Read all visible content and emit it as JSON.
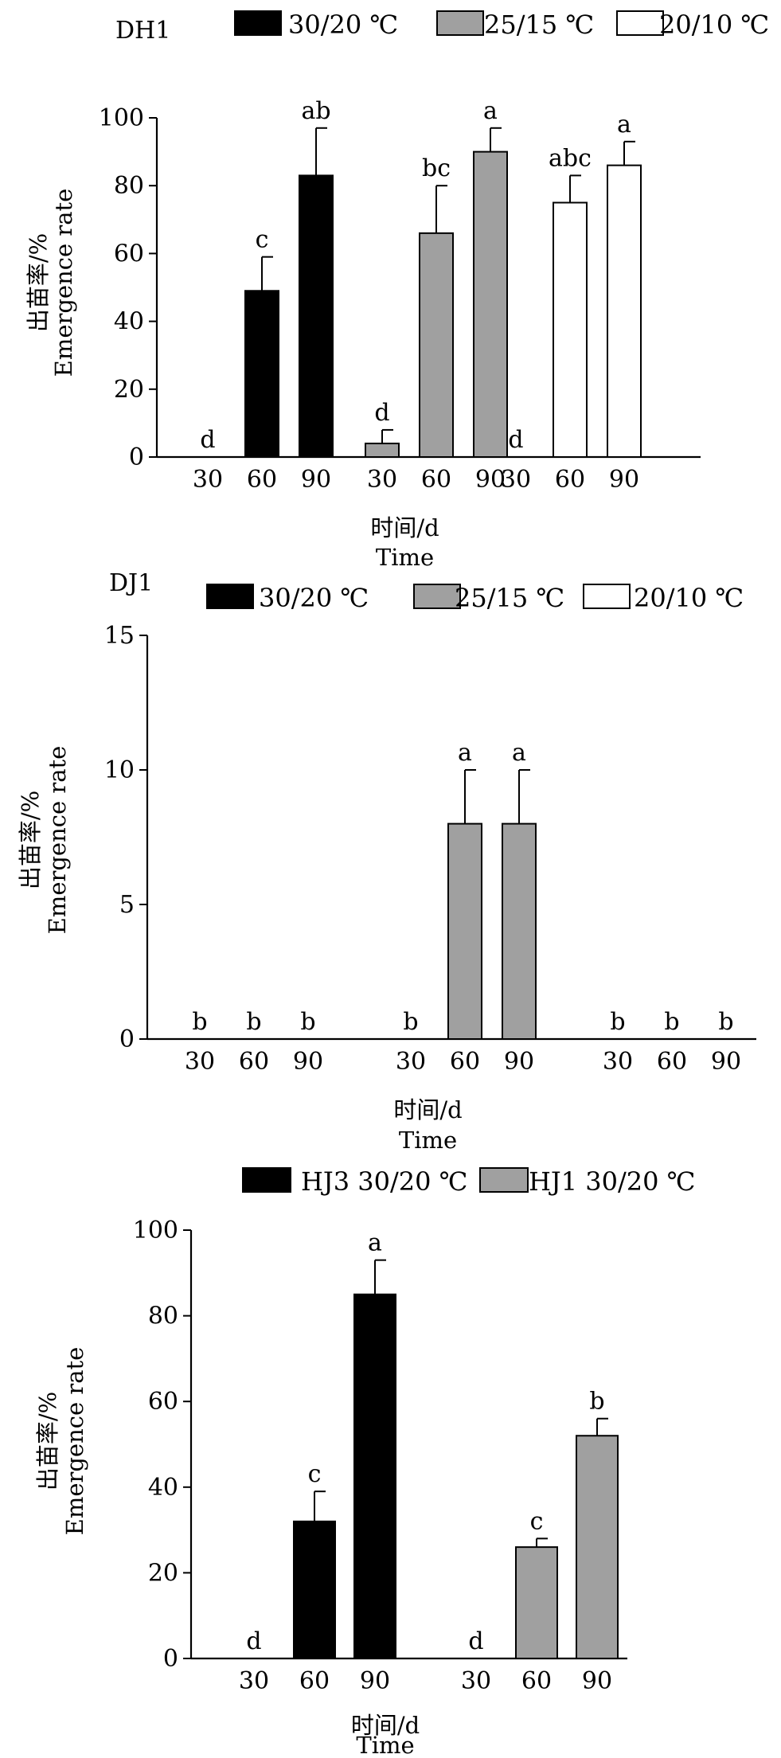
{
  "chart_data": [
    {
      "type": "bar",
      "panel_label": "DH1",
      "xlabel": "时间/d",
      "xlabel_en": "Time",
      "ylabel": "出苗率/%",
      "ylabel_en": "Emergence rate",
      "ylim": [
        0,
        100
      ],
      "yticks": [
        "0",
        "20",
        "40",
        "60",
        "80",
        "100"
      ],
      "grid": false,
      "legend_position": "top",
      "groups": [
        {
          "name": "30/20 ℃",
          "color": "#000000",
          "bars": [
            {
              "x": "30",
              "value": 0,
              "error": 0,
              "sig": "d"
            },
            {
              "x": "60",
              "value": 49,
              "error": 10,
              "sig": "c"
            },
            {
              "x": "90",
              "value": 83,
              "error": 14,
              "sig": "ab"
            }
          ]
        },
        {
          "name": "25/15 ℃",
          "color": "#a0a0a0",
          "bars": [
            {
              "x": "30",
              "value": 4,
              "error": 4,
              "sig": "d"
            },
            {
              "x": "60",
              "value": 66,
              "error": 14,
              "sig": "bc"
            },
            {
              "x": "90",
              "value": 90,
              "error": 7,
              "sig": "a"
            }
          ]
        },
        {
          "name": "20/10 ℃",
          "color": "#ffffff",
          "bars": [
            {
              "x": "30",
              "value": 0,
              "error": 0,
              "sig": "d"
            },
            {
              "x": "60",
              "value": 75,
              "error": 8,
              "sig": "abc"
            },
            {
              "x": "90",
              "value": 86,
              "error": 7,
              "sig": "a"
            }
          ]
        }
      ]
    },
    {
      "type": "bar",
      "panel_label": "DJ1",
      "xlabel": "时间/d",
      "xlabel_en": "Time",
      "ylabel": "出苗率/%",
      "ylabel_en": "Emergence rate",
      "ylim": [
        0,
        15
      ],
      "yticks": [
        "0",
        "5",
        "10",
        "15"
      ],
      "grid": false,
      "legend_position": "top",
      "groups": [
        {
          "name": "30/20 ℃",
          "color": "#000000",
          "bars": [
            {
              "x": "30",
              "value": 0,
              "error": 0,
              "sig": "b"
            },
            {
              "x": "60",
              "value": 0,
              "error": 0,
              "sig": "b"
            },
            {
              "x": "90",
              "value": 0,
              "error": 0,
              "sig": "b"
            }
          ]
        },
        {
          "name": "25/15 ℃",
          "color": "#a0a0a0",
          "bars": [
            {
              "x": "30",
              "value": 0,
              "error": 0,
              "sig": "b"
            },
            {
              "x": "60",
              "value": 8,
              "error": 2,
              "sig": "a"
            },
            {
              "x": "90",
              "value": 8,
              "error": 2,
              "sig": "a"
            }
          ]
        },
        {
          "name": "20/10 ℃",
          "color": "#ffffff",
          "bars": [
            {
              "x": "30",
              "value": 0,
              "error": 0,
              "sig": "b"
            },
            {
              "x": "60",
              "value": 0,
              "error": 0,
              "sig": "b"
            },
            {
              "x": "90",
              "value": 0,
              "error": 0,
              "sig": "b"
            }
          ]
        }
      ]
    },
    {
      "type": "bar",
      "panel_label": "",
      "xlabel": "时间/d",
      "xlabel_en": "Time",
      "ylabel": "出苗率/%",
      "ylabel_en": "Emergence rate",
      "ylim": [
        0,
        100
      ],
      "yticks": [
        "0",
        "20",
        "40",
        "60",
        "80",
        "100"
      ],
      "grid": false,
      "legend_position": "top",
      "groups": [
        {
          "name": "HJ3 30/20 ℃",
          "color": "#000000",
          "bars": [
            {
              "x": "30",
              "value": 0,
              "error": 0,
              "sig": "d"
            },
            {
              "x": "60",
              "value": 32,
              "error": 7,
              "sig": "c"
            },
            {
              "x": "90",
              "value": 85,
              "error": 8,
              "sig": "a"
            }
          ]
        },
        {
          "name": "HJ1 30/20 ℃",
          "color": "#a0a0a0",
          "bars": [
            {
              "x": "30",
              "value": 0,
              "error": 0,
              "sig": "d"
            },
            {
              "x": "60",
              "value": 26,
              "error": 2,
              "sig": "c"
            },
            {
              "x": "90",
              "value": 52,
              "error": 4,
              "sig": "b"
            }
          ]
        }
      ]
    }
  ]
}
